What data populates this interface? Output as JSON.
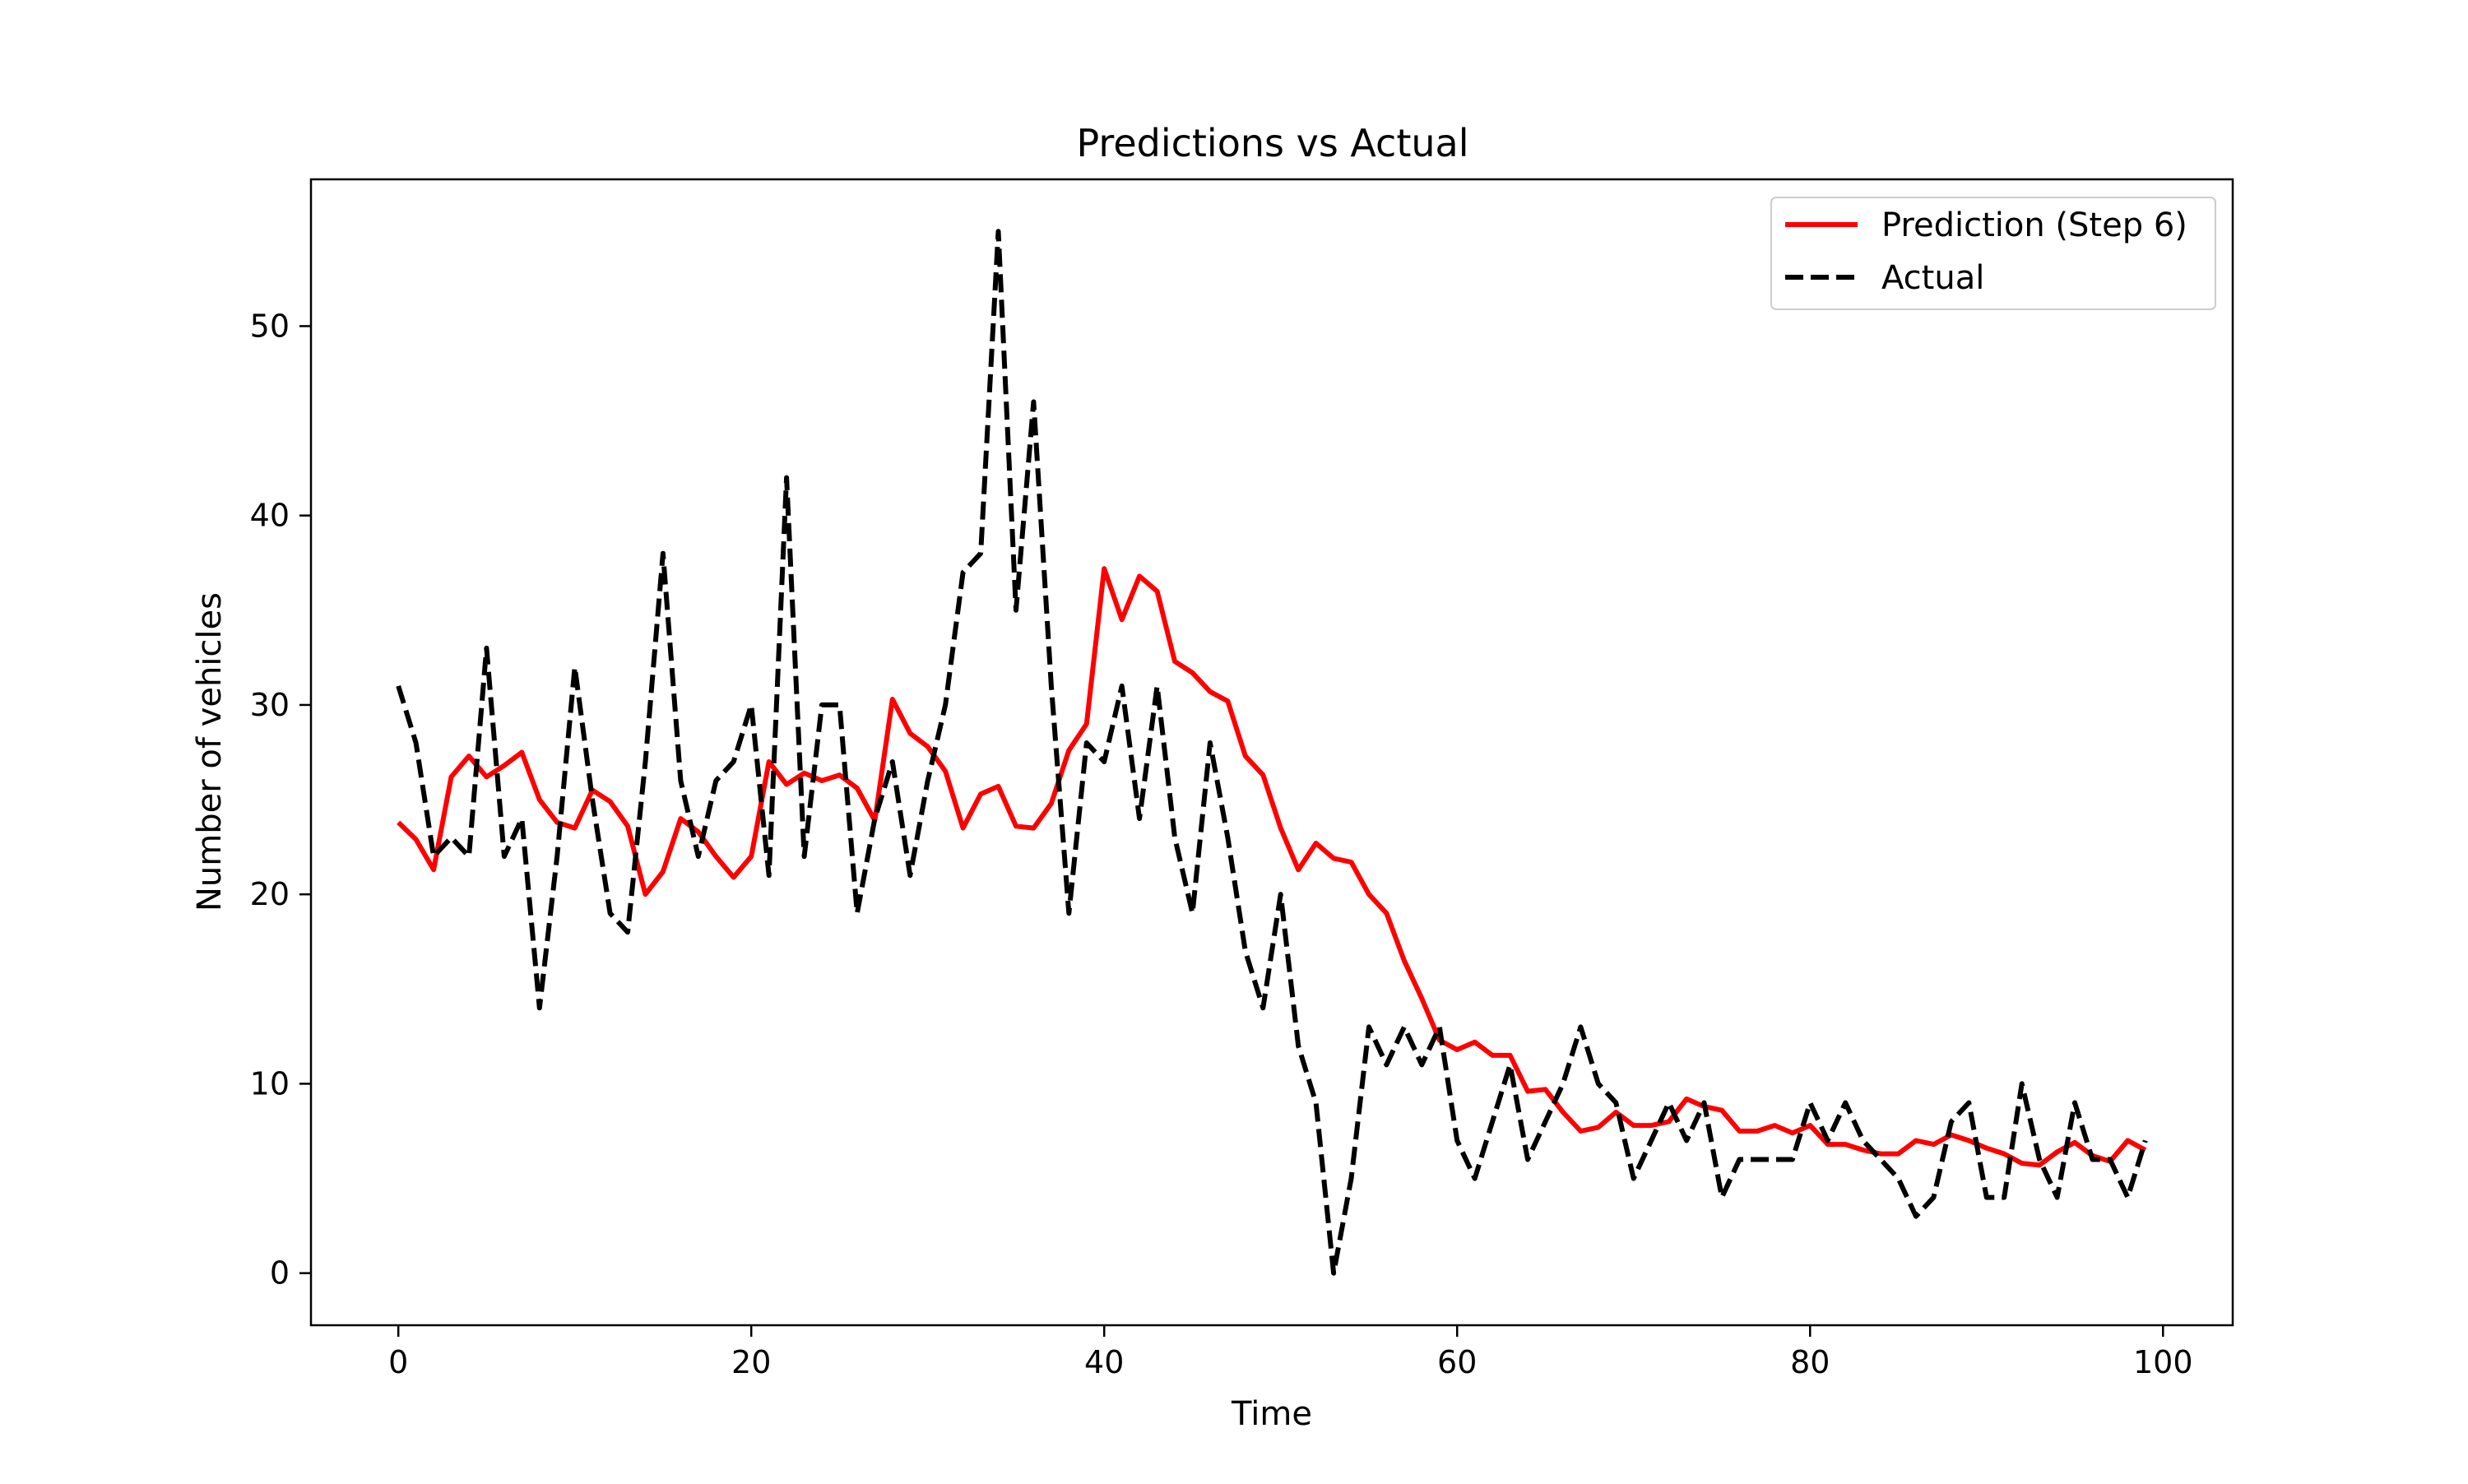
{
  "chart_data": {
    "type": "line",
    "title": "Predictions vs Actual",
    "xlabel": "Time",
    "ylabel": "Number of vehicles",
    "xlim": [
      -4.95,
      103.95
    ],
    "ylim": [
      -2.75,
      57.75
    ],
    "xticks": [
      0,
      20,
      40,
      60,
      80,
      100
    ],
    "yticks": [
      0,
      10,
      20,
      30,
      40,
      50
    ],
    "grid": false,
    "legend_position": "top-right",
    "series": [
      {
        "name": "Prediction (Step 6)",
        "color": "#ff0000",
        "style": "solid",
        "x": [
          0,
          1,
          2,
          3,
          4,
          5,
          6,
          7,
          8,
          9,
          10,
          11,
          12,
          13,
          14,
          15,
          16,
          17,
          18,
          19,
          20,
          21,
          22,
          23,
          24,
          25,
          26,
          27,
          28,
          29,
          30,
          31,
          32,
          33,
          34,
          35,
          36,
          37,
          38,
          39,
          40,
          41,
          42,
          43,
          44,
          45,
          46,
          47,
          48,
          49,
          50,
          51,
          52,
          53,
          54,
          55,
          56,
          57,
          58,
          59,
          60,
          61,
          62,
          63,
          64,
          65,
          66,
          67,
          68,
          69,
          70,
          71,
          72,
          73,
          74,
          75,
          76,
          77,
          78,
          79,
          80,
          81,
          82,
          83,
          84,
          85,
          86,
          87,
          88,
          89,
          90,
          91,
          92,
          93,
          94,
          95,
          96,
          97,
          98,
          99
        ],
        "values": [
          23.8,
          22.9,
          21.3,
          26.2,
          27.3,
          26.2,
          26.8,
          27.5,
          25.0,
          23.8,
          23.5,
          25.5,
          24.9,
          23.6,
          20.0,
          21.2,
          24.0,
          23.3,
          22.0,
          20.9,
          22.0,
          27.0,
          25.8,
          26.4,
          26.0,
          26.3,
          25.6,
          23.9,
          30.3,
          28.5,
          27.8,
          26.5,
          23.5,
          25.3,
          25.7,
          23.6,
          23.5,
          24.8,
          27.6,
          29.0,
          37.2,
          34.5,
          36.8,
          36.0,
          32.3,
          31.7,
          30.7,
          30.2,
          27.3,
          26.3,
          23.5,
          21.3,
          22.7,
          21.9,
          21.7,
          20.0,
          19.0,
          16.5,
          14.5,
          12.3,
          11.8,
          12.2,
          11.5,
          11.5,
          9.6,
          9.7,
          8.5,
          7.5,
          7.7,
          8.5,
          7.8,
          7.8,
          8.0,
          9.2,
          8.8,
          8.6,
          7.5,
          7.5,
          7.8,
          7.4,
          7.8,
          6.8,
          6.8,
          6.5,
          6.3,
          6.3,
          7.0,
          6.8,
          7.3,
          7.0,
          6.6,
          6.3,
          5.8,
          5.7,
          6.4,
          6.9,
          6.2,
          5.9,
          7.0,
          6.5
        ]
      },
      {
        "name": "Actual",
        "color": "#000000",
        "style": "dashed",
        "x": [
          0,
          1,
          2,
          3,
          4,
          5,
          6,
          7,
          8,
          9,
          10,
          11,
          12,
          13,
          14,
          15,
          16,
          17,
          18,
          19,
          20,
          21,
          22,
          23,
          24,
          25,
          26,
          27,
          28,
          29,
          30,
          31,
          32,
          33,
          34,
          35,
          36,
          37,
          38,
          39,
          40,
          41,
          42,
          43,
          44,
          45,
          46,
          47,
          48,
          49,
          50,
          51,
          52,
          53,
          54,
          55,
          56,
          57,
          58,
          59,
          60,
          61,
          62,
          63,
          64,
          65,
          66,
          67,
          68,
          69,
          70,
          71,
          72,
          73,
          74,
          75,
          76,
          77,
          78,
          79,
          80,
          81,
          82,
          83,
          84,
          85,
          86,
          87,
          88,
          89,
          90,
          91,
          92,
          93,
          94,
          95,
          96,
          97,
          98,
          99
        ],
        "values": [
          31,
          28,
          22,
          23,
          22,
          33,
          22,
          24,
          14,
          22,
          32,
          25,
          19,
          18,
          27,
          38,
          26,
          22,
          26,
          27,
          30,
          21,
          42,
          22,
          30,
          30,
          19,
          24,
          27,
          21,
          26,
          30,
          37,
          38,
          55,
          35,
          46,
          31,
          19,
          28,
          27,
          31,
          24,
          31,
          23,
          19,
          28,
          23,
          17,
          14,
          20,
          12,
          9,
          0,
          5,
          13,
          11,
          13,
          11,
          13,
          7,
          5,
          8,
          11,
          6,
          8,
          10,
          13,
          10,
          9,
          5,
          7,
          9,
          7,
          9,
          4,
          6,
          6,
          6,
          6,
          9,
          7,
          9,
          7,
          6,
          5,
          3,
          4,
          8,
          9,
          4,
          4,
          10,
          6,
          4,
          9,
          6,
          6,
          4,
          7
        ]
      }
    ]
  }
}
